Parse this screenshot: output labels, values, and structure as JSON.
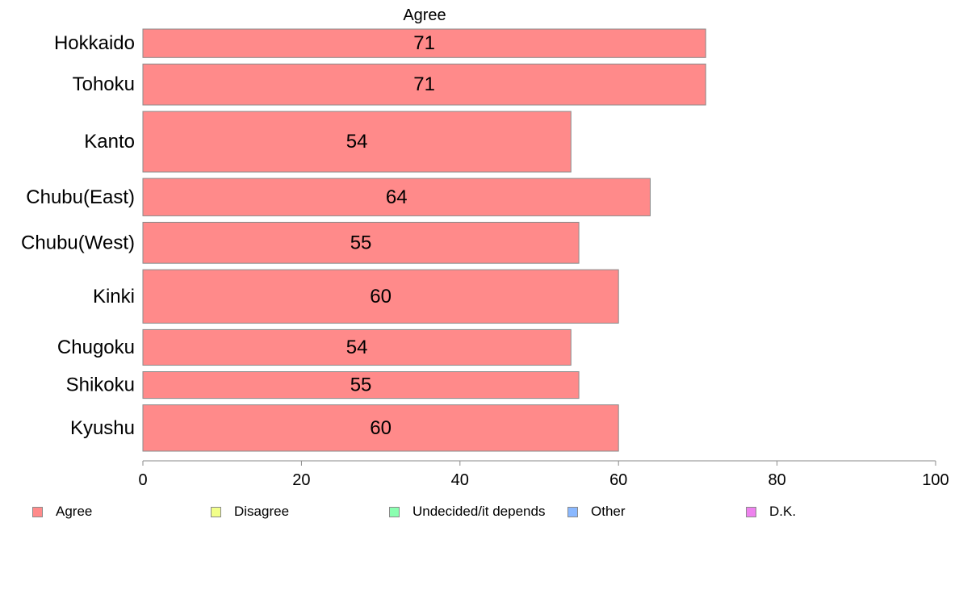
{
  "chart_data": {
    "type": "bar",
    "orientation": "horizontal",
    "title": "Agree",
    "categories": [
      "Hokkaido",
      "Tohoku",
      "Kanto",
      "Chubu(East)",
      "Chubu(West)",
      "Kinki",
      "Chugoku",
      "Shikoku",
      "Kyushu"
    ],
    "series": [
      {
        "name": "Agree",
        "values": [
          71,
          71,
          54,
          64,
          55,
          60,
          54,
          55,
          60
        ],
        "color": "#ff8a8a"
      }
    ],
    "bar_weights": [
      0.8,
      1.15,
      1.7,
      1.05,
      1.15,
      1.5,
      1.0,
      0.75,
      1.3
    ],
    "xlim": [
      0,
      100
    ],
    "xticks": [
      "0",
      "20",
      "40",
      "60",
      "80",
      "100"
    ],
    "grid": false,
    "legend_position": "bottom"
  },
  "legend": [
    {
      "label": "Agree",
      "color": "#ff8a8a"
    },
    {
      "label": "Disagree",
      "color": "#f2ff8a"
    },
    {
      "label": "Undecided/it depends",
      "color": "#8affb0"
    },
    {
      "label": "Other",
      "color": "#8ab8ff"
    },
    {
      "label": "D.K.",
      "color": "#ee82ee"
    }
  ]
}
